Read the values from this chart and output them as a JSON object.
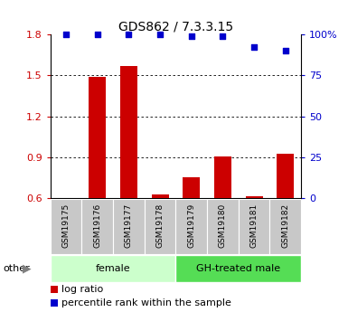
{
  "title": "GDS862 / 7.3.3.15",
  "samples": [
    "GSM19175",
    "GSM19176",
    "GSM19177",
    "GSM19178",
    "GSM19179",
    "GSM19180",
    "GSM19181",
    "GSM19182"
  ],
  "log_ratio": [
    0.6,
    1.485,
    1.57,
    0.625,
    0.755,
    0.905,
    0.615,
    0.925
  ],
  "percentile_rank_pct": [
    100,
    100,
    100,
    100,
    99,
    99,
    92,
    90
  ],
  "bar_color": "#cc0000",
  "dot_color": "#0000cc",
  "ymin": 0.6,
  "ymax": 1.8,
  "yticks": [
    0.6,
    0.9,
    1.2,
    1.5,
    1.8
  ],
  "ytick_labels": [
    "0.6",
    "0.9",
    "1.2",
    "1.5",
    "1.8"
  ],
  "y2min": 0,
  "y2max": 100,
  "y2ticks": [
    0,
    25,
    50,
    75,
    100
  ],
  "y2tick_labels": [
    "0",
    "25",
    "50",
    "75",
    "100%"
  ],
  "groups": [
    {
      "label": "female",
      "start": 0,
      "end": 4,
      "color": "#ccffcc"
    },
    {
      "label": "GH-treated male",
      "start": 4,
      "end": 8,
      "color": "#55dd55"
    }
  ],
  "bar_width": 0.55,
  "baseline": 0.6,
  "left_tick_color": "#cc0000",
  "right_tick_color": "#0000cc",
  "legend_bar_label": "log ratio",
  "legend_dot_label": "percentile rank within the sample",
  "other_label": "other",
  "x_label_bg": "#c8c8c8",
  "title_fontsize": 10,
  "tick_fontsize": 8,
  "sample_fontsize": 6.5,
  "group_fontsize": 8,
  "legend_fontsize": 8
}
